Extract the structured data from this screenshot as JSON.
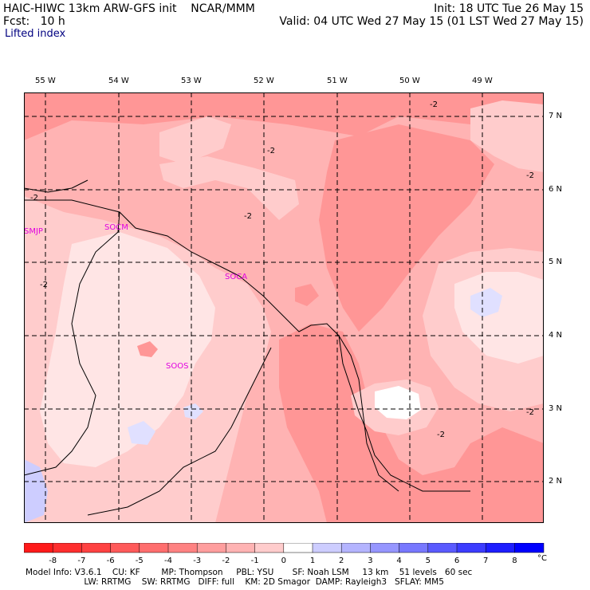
{
  "header": {
    "title": "HAIC-HIWC 13km ARW-GFS init    NCAR/MMM",
    "fcst": "Fcst:   10 h",
    "field": "Lifted index",
    "init": "Init: 18 UTC Tue 26 May 15",
    "valid": "Valid: 04 UTC Wed 27 May 15 (01 LST Wed 27 May 15)"
  },
  "map": {
    "lon_labels": [
      "55 W",
      "54 W",
      "53 W",
      "52 W",
      "51 W",
      "50 W",
      "49 W"
    ],
    "lat_labels": [
      "7 N",
      "6 N",
      "5 N",
      "4 N",
      "3 N",
      "2 N"
    ],
    "stations": [
      "SMJP",
      "SOCM",
      "SOCA",
      "SOOS"
    ],
    "contour_label": "-2",
    "colors": {
      "base": "#ffb3b3",
      "deep": "#ff9696",
      "light": "#ffcccc",
      "pale": "#ffe5e5",
      "white": "#ffffff",
      "blue_pale": "#e0e0ff",
      "blue_light": "#cdcdff",
      "station": "#e000e0"
    }
  },
  "colorbar": {
    "labels": [
      "-8",
      "-7",
      "-6",
      "-5",
      "-4",
      "-3",
      "-2",
      "-1",
      "0",
      "1",
      "2",
      "3",
      "4",
      "5",
      "6",
      "7",
      "8"
    ],
    "unit": "°C",
    "colors": [
      "#ff1a1a",
      "#ff2e2e",
      "#ff4242",
      "#ff5a5a",
      "#ff6e6e",
      "#ff8282",
      "#ff9e9e",
      "#ffb3b3",
      "#ffcccc",
      "#ffffff",
      "#cdcdff",
      "#b4b4ff",
      "#9696ff",
      "#7878ff",
      "#5a5aff",
      "#3c3cff",
      "#1e1eff",
      "#0000ff"
    ]
  },
  "footer": {
    "line1": "Model Info: V3.6.1    CU: KF        MP: Thompson     PBL: YSU       SF: Noah LSM     13 km    51 levels   60 sec",
    "line2": "                      LW: RRTMG    SW: RRTMG   DIFF: full    KM: 2D Smagor  DAMP: Rayleigh3   SFLAY: MM5"
  }
}
